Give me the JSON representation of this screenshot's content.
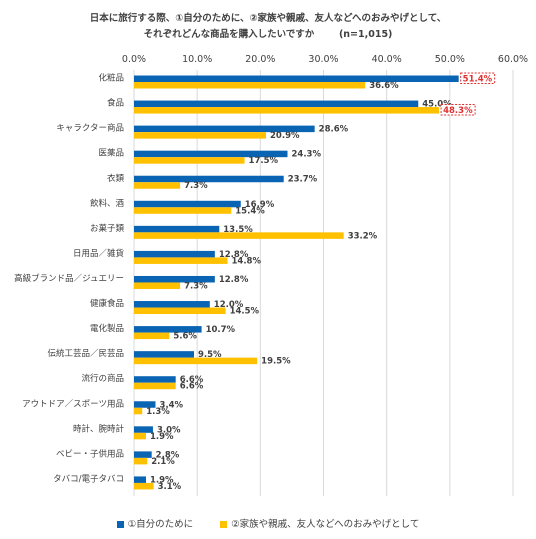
{
  "title_line1": "日本に旅行する際、①自分のために、②家族や親戚、友人などへのおみやげとして、",
  "title_line2": "それぞれどんな商品を購入したいですか",
  "title_n": "(n=1,015)",
  "colors": {
    "series1": "#0a64b4",
    "series2": "#ffc000",
    "highlight_border": "#e03030",
    "highlight_text": "#e03030",
    "grid": "#d9d9d9"
  },
  "chart_data": {
    "type": "bar",
    "orientation": "horizontal",
    "categories": [
      "化粧品",
      "食品",
      "キャラクター商品",
      "医薬品",
      "衣類",
      "飲料、酒",
      "お菓子類",
      "日用品／雑貨",
      "高級ブランド品／ジュエリー",
      "健康食品",
      "電化製品",
      "伝統工芸品／民芸品",
      "流行の商品",
      "アウトドア／スポーツ用品",
      "時計、腕時計",
      "ベビー・子供用品",
      "タバコ/電子タバコ"
    ],
    "series": [
      {
        "name": "①自分のために",
        "values": [
          51.4,
          45.0,
          28.6,
          24.3,
          23.7,
          16.9,
          13.5,
          12.8,
          12.8,
          12.0,
          10.7,
          9.5,
          6.6,
          3.4,
          3.0,
          2.8,
          1.9
        ],
        "labels": [
          "51.4%",
          "45.0%",
          "28.6%",
          "24.3%",
          "23.7%",
          "16.9%",
          "13.5%",
          "12.8%",
          "12.8%",
          "12.0%",
          "10.7%",
          "9.5%",
          "6.6%",
          "3.4%",
          "3.0%",
          "2.8%",
          "1.9%"
        ]
      },
      {
        "name": "②家族や親戚、友人などへのおみやげとして",
        "values": [
          36.6,
          48.3,
          20.9,
          17.5,
          7.3,
          15.4,
          33.2,
          14.8,
          7.3,
          14.5,
          5.6,
          19.5,
          6.6,
          1.3,
          1.9,
          2.1,
          3.1
        ],
        "labels": [
          "36.6%",
          "48.3%",
          "20.9%",
          "17.5%",
          "7.3%",
          "15.4%",
          "33.2%",
          "14.8%",
          "7.3%",
          "14.5%",
          "5.6%",
          "19.5%",
          "6.6%",
          "1.3%",
          "1.9%",
          "2.1%",
          "3.1%"
        ]
      }
    ],
    "xlim": [
      0,
      60
    ],
    "x_ticks": [
      "0.0%",
      "10.0%",
      "20.0%",
      "30.0%",
      "40.0%",
      "50.0%",
      "60.0%"
    ],
    "x_tick_values": [
      0,
      10,
      20,
      30,
      40,
      50,
      60
    ],
    "grid": true,
    "legend_position": "bottom",
    "highlighted": [
      {
        "series": 0,
        "category": 0
      },
      {
        "series": 1,
        "category": 1
      }
    ]
  }
}
